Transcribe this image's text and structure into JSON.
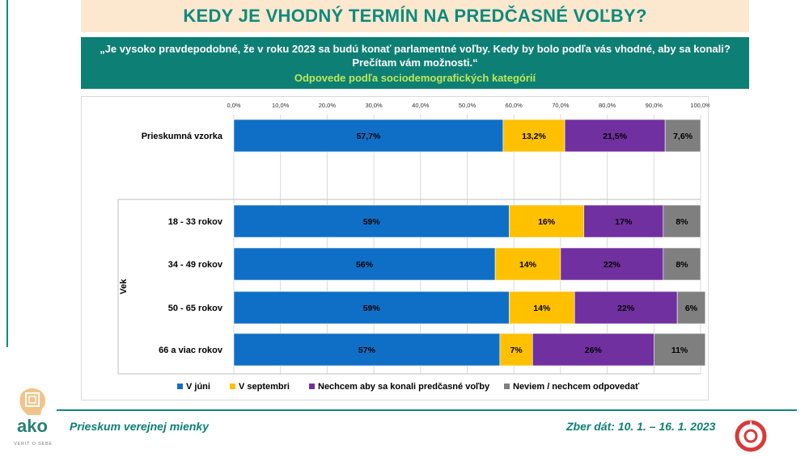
{
  "title": "KEDY JE VHODNÝ TERMÍN NA PREDČASNÉ VOĽBY?",
  "question_line1": "„Je vysoko pravdepodobné, že v roku 2023 sa budú konať parlamentné voľby. Kedy by bolo podľa vás vhodné, aby sa konali?",
  "question_line2": "Prečítam vám možnosti.“",
  "subtitle": "Odpovede podľa sociodemografických kategórií",
  "chart_data": {
    "type": "bar",
    "orientation": "horizontal-stacked-100",
    "x_ticks": [
      "0,0%",
      "10,0%",
      "20,0%",
      "30,0%",
      "40,0%",
      "50,0%",
      "60,0%",
      "70,0%",
      "80,0%",
      "90,0%",
      "100,0%"
    ],
    "xlim": [
      0,
      100
    ],
    "group_label": "Vek",
    "categories": [
      "Prieskumná vzorka",
      "18 - 33 rokov",
      "34 - 49 rokov",
      "50 - 65 rokov",
      "66 a viac rokov"
    ],
    "series": [
      {
        "name": "V júni",
        "color": "#0f6fc6",
        "values": [
          57.7,
          59,
          56,
          59,
          57
        ],
        "labels": [
          "57,7%",
          "59%",
          "56%",
          "59%",
          "57%"
        ]
      },
      {
        "name": "V septembri",
        "color": "#ffc000",
        "values": [
          13.2,
          16,
          14,
          14,
          7
        ],
        "labels": [
          "13,2%",
          "16%",
          "14%",
          "14%",
          "7%"
        ]
      },
      {
        "name": "Nechcem aby sa konali predčasné voľby",
        "color": "#7030a0",
        "values": [
          21.5,
          17,
          22,
          22,
          26
        ],
        "labels": [
          "21,5%",
          "17%",
          "22%",
          "22%",
          "26%"
        ]
      },
      {
        "name": "Neviem / nechcem odpovedať",
        "color": "#7f7f7f",
        "values": [
          7.6,
          8,
          8,
          6,
          11
        ],
        "labels": [
          "7,6%",
          "8%",
          "8%",
          "6%",
          "11%"
        ]
      }
    ]
  },
  "footer": {
    "left": "Prieskum verejnej mienky",
    "right": "Zber dát: 10. 1. – 16. 1. 2023"
  },
  "logo": {
    "text": "ako",
    "tagline": "VERIŤ O SEBE"
  }
}
